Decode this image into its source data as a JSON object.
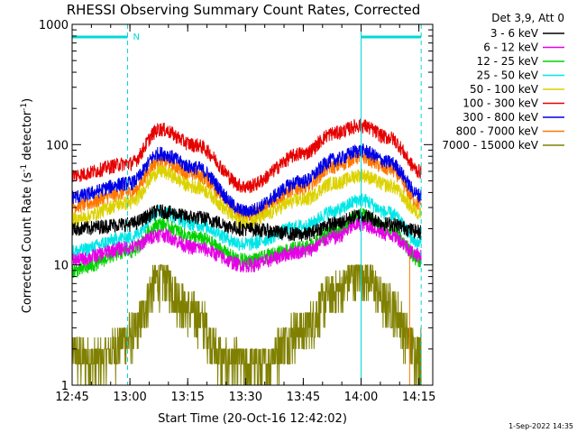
{
  "chart_data": {
    "type": "line",
    "title": "RHESSI Observing Summary Count Rates, Corrected",
    "xlabel": "Start Time (20-Oct-16 12:42:02)",
    "ylabel": "Corrected Count Rate (s",
    "ylabel_sup1": "-1",
    "ylabel_mid": " detector",
    "ylabel_sup2": "-1",
    "ylabel_end": ")",
    "yscale": "log",
    "ylim": [
      1,
      1000
    ],
    "xlim_minutes": [
      12.75,
      14.31
    ],
    "x_ticks": [
      {
        "label": "12:45",
        "t": 12.75
      },
      {
        "label": "13:00",
        "t": 13.0
      },
      {
        "label": "13:15",
        "t": 13.25
      },
      {
        "label": "13:30",
        "t": 13.5
      },
      {
        "label": "13:45",
        "t": 13.75
      },
      {
        "label": "14:00",
        "t": 14.0
      },
      {
        "label": "14:15",
        "t": 14.25
      }
    ],
    "y_ticks": [
      {
        "label": "1",
        "v": 1
      },
      {
        "label": "10",
        "v": 10
      },
      {
        "label": "100",
        "v": 100
      },
      {
        "label": "1000",
        "v": 1000
      }
    ],
    "legend_header": "Det 3,9, Att 0",
    "legend_placement": "right",
    "night_marker": "N",
    "night_start": 12.75,
    "night_end": 12.99,
    "cyan_vertical_lines": [
      12.75,
      14.0
    ],
    "dashed_vertical_lines": [
      12.99,
      14.26
    ],
    "orange_vertical_line": 14.21,
    "series": [
      {
        "name": "3 - 6 keV",
        "color": "#000000",
        "x": [
          12.75,
          13.0,
          13.13,
          13.28,
          13.5,
          13.75,
          13.88,
          14.0,
          14.12,
          14.26
        ],
        "y": [
          20,
          22,
          28,
          25,
          20,
          18,
          22,
          26,
          22,
          19
        ]
      },
      {
        "name": "6 - 12 keV",
        "color": "#e600e6",
        "x": [
          12.75,
          13.0,
          13.13,
          13.28,
          13.5,
          13.75,
          13.88,
          14.0,
          14.12,
          14.26
        ],
        "y": [
          11,
          14,
          18,
          14,
          10,
          13,
          17,
          22,
          18,
          12
        ]
      },
      {
        "name": "12 - 25 keV",
        "color": "#00d200",
        "x": [
          12.75,
          13.0,
          13.13,
          13.28,
          13.5,
          13.75,
          13.88,
          14.0,
          14.12,
          14.26
        ],
        "y": [
          9,
          13,
          22,
          17,
          11,
          14,
          19,
          26,
          20,
          11
        ]
      },
      {
        "name": "25 - 50 keV",
        "color": "#00e6e6",
        "x": [
          12.75,
          13.0,
          13.13,
          13.28,
          13.5,
          13.75,
          13.88,
          14.0,
          14.12,
          14.26
        ],
        "y": [
          13,
          17,
          28,
          22,
          15,
          21,
          28,
          35,
          27,
          15
        ]
      },
      {
        "name": "50 - 100 keV",
        "color": "#dcd200",
        "x": [
          12.75,
          13.0,
          13.13,
          13.28,
          13.5,
          13.75,
          13.88,
          14.0,
          14.12,
          14.26
        ],
        "y": [
          24,
          33,
          60,
          45,
          23,
          35,
          48,
          56,
          46,
          27
        ]
      },
      {
        "name": "100 - 300 keV",
        "color": "#e60000",
        "x": [
          12.75,
          13.0,
          13.13,
          13.28,
          13.5,
          13.75,
          13.88,
          14.0,
          14.12,
          14.26
        ],
        "y": [
          56,
          70,
          135,
          100,
          45,
          85,
          125,
          145,
          115,
          60
        ]
      },
      {
        "name": "300 - 800 keV",
        "color": "#0000e6",
        "x": [
          12.75,
          13.0,
          13.13,
          13.28,
          13.5,
          13.75,
          13.88,
          14.0,
          14.12,
          14.26
        ],
        "y": [
          37,
          48,
          85,
          65,
          28,
          50,
          75,
          90,
          72,
          38
        ]
      },
      {
        "name": "800 - 7000 keV",
        "color": "#ff7800",
        "x": [
          12.75,
          13.0,
          13.13,
          13.28,
          13.5,
          13.75,
          13.88,
          14.0,
          14.12,
          14.26
        ],
        "y": [
          31,
          40,
          74,
          57,
          26,
          44,
          66,
          80,
          63,
          32
        ]
      },
      {
        "name": "7000 - 15000 keV",
        "color": "#808000",
        "x": [
          12.75,
          12.85,
          13.0,
          13.13,
          13.28,
          13.42,
          13.55,
          13.75,
          13.88,
          14.0,
          14.12,
          14.24
        ],
        "y": [
          1.8,
          1.6,
          2.5,
          8,
          4,
          1.6,
          1.5,
          3,
          6,
          9,
          5,
          2
        ]
      }
    ]
  },
  "footer_timestamp": "1-Sep-2022 14:35"
}
